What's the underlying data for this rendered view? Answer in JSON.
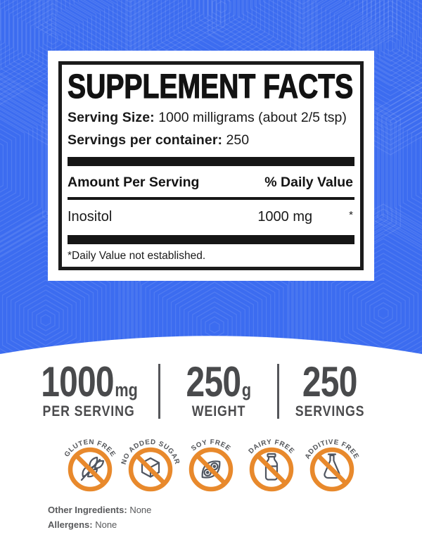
{
  "panel": {
    "title": "SUPPLEMENT FACTS",
    "serving_size_label": "Serving Size:",
    "serving_size_value": "1000 milligrams (about 2/5 tsp)",
    "servings_label": "Servings per container:",
    "servings_value": "250",
    "amount_header": "Amount Per Serving",
    "dv_header": "% Daily Value",
    "rows": [
      {
        "name": "Inositol",
        "amount": "1000 mg",
        "dv": "*"
      }
    ],
    "footnote": "*Daily Value not established."
  },
  "stats": [
    {
      "value": "1000",
      "unit": "mg",
      "label": "PER SERVING"
    },
    {
      "value": "250",
      "unit": "g",
      "label": "WEIGHT"
    },
    {
      "value": "250",
      "unit": "",
      "label": "SERVINGS"
    }
  ],
  "badges": [
    {
      "label": "GLUTEN FREE",
      "icon": "wheat-icon"
    },
    {
      "label": "NO ADDED SUGAR",
      "icon": "sugar-cube-icon"
    },
    {
      "label": "SOY FREE",
      "icon": "soybean-icon"
    },
    {
      "label": "DAIRY FREE",
      "icon": "milk-bottle-icon"
    },
    {
      "label": "ADDITIVE FREE",
      "icon": "flask-icon"
    }
  ],
  "footer": {
    "other_ingredients_label": "Other Ingredients:",
    "other_ingredients_value": "None",
    "allergens_label": "Allergens:",
    "allergens_value": "None"
  },
  "colors": {
    "background_blue": "#3c6cf0",
    "pattern_line": "rgba(255,255,255,0.10)",
    "badge_orange": "#e8892c",
    "icon_gray": "#4f5560",
    "stat_gray": "#494a4c",
    "panel_black": "#161616"
  }
}
